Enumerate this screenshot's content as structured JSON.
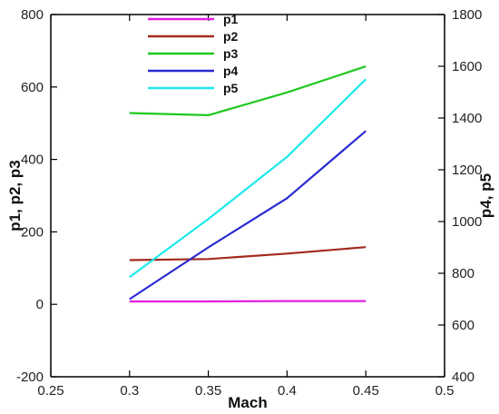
{
  "chart_data": {
    "type": "line",
    "title": "",
    "xlabel": "Mach",
    "ylabel_left": "p1, p2, p3",
    "ylabel_right": "p4, p5",
    "xlim": [
      0.25,
      0.5
    ],
    "ylim_left": [
      -200,
      800
    ],
    "ylim_right": [
      400,
      1800
    ],
    "xticks": [
      "0.25",
      "0.3",
      "0.35",
      "0.4",
      "0.45",
      "0.5"
    ],
    "yticks_left": [
      "-200",
      "0",
      "200",
      "400",
      "600",
      "800"
    ],
    "yticks_right": [
      "400",
      "600",
      "800",
      "1000",
      "1200",
      "1400",
      "1600",
      "1800"
    ],
    "grid": false,
    "legend_position": "top-center",
    "series": [
      {
        "name": "p1",
        "axis": "left",
        "color": "#e020e0",
        "x": [
          0.3,
          0.35,
          0.4,
          0.45
        ],
        "y": [
          8,
          8,
          9,
          9
        ]
      },
      {
        "name": "p2",
        "axis": "left",
        "color": "#a52a1e",
        "x": [
          0.3,
          0.35,
          0.4,
          0.45
        ],
        "y": [
          122,
          125,
          140,
          158
        ]
      },
      {
        "name": "p3",
        "axis": "left",
        "color": "#1ec81e",
        "x": [
          0.3,
          0.35,
          0.4,
          0.45
        ],
        "y": [
          528,
          522,
          585,
          657
        ]
      },
      {
        "name": "p4",
        "axis": "right",
        "color": "#2a2ad2",
        "x": [
          0.3,
          0.35,
          0.4,
          0.45
        ],
        "y": [
          700,
          900,
          1090,
          1350
        ]
      },
      {
        "name": "p5",
        "axis": "right",
        "color": "#1ee8ec",
        "x": [
          0.3,
          0.35,
          0.4,
          0.45
        ],
        "y": [
          785,
          1010,
          1250,
          1550
        ]
      }
    ]
  }
}
